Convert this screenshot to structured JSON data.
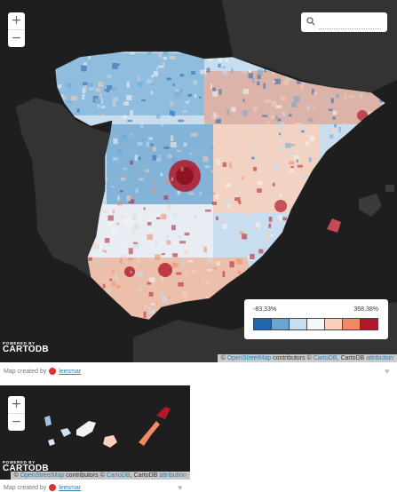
{
  "main_map": {
    "zoom_in": "+",
    "zoom_out": "−",
    "search": {
      "placeholder": "",
      "icon": "search-icon"
    },
    "legend": {
      "min_label": "-83,33%",
      "max_label": "368,38%",
      "colors": [
        "#2166ac",
        "#6ba6d2",
        "#c8ddee",
        "#f7f7f7",
        "#fbd0b8",
        "#ef8a62",
        "#b2182b"
      ]
    },
    "brand": {
      "powered": "POWERED BY",
      "name": "CARTODB"
    },
    "attribution": {
      "prefix": "©",
      "osm": "OpenStreetMap",
      "contrib": "contributors ©",
      "cartodb": "CartoDB",
      "middle": ", CartoDB",
      "link": "attribution"
    }
  },
  "credit_1": {
    "text": "Map created by",
    "user": "leesmar"
  },
  "inset_map": {
    "zoom_in": "+",
    "zoom_out": "−",
    "brand": {
      "powered": "POWERED BY",
      "name": "CARTODB"
    },
    "attribution": {
      "prefix": "©",
      "osm": "OpenStreetMap",
      "contrib": "contributors ©",
      "cartodb": "CartoDB",
      "middle": ", CartoDB",
      "link": "attribution"
    }
  },
  "credit_2": {
    "text": "Map created by",
    "user": "leesmar"
  },
  "colors": {
    "map_bg": "#1e1e1e",
    "land_dark": "#3a3a3a",
    "link": "#2a7fb6"
  }
}
